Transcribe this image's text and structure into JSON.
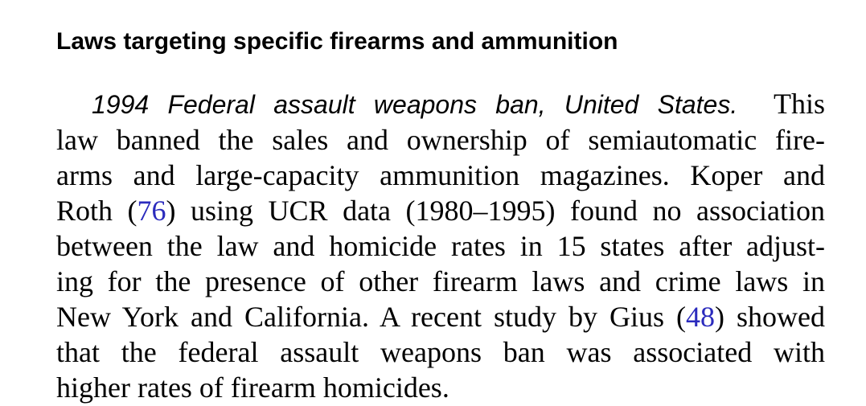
{
  "section": {
    "heading": "Laws targeting specific firearms and ammunition"
  },
  "paragraph": {
    "lead_title": "1994 Federal assault weapons ban, United States.",
    "line1_rest": "This",
    "line2": "law banned the sales and ownership of semiautomatic fire-",
    "line3": "arms and large-capacity ammunition magazines. Koper and",
    "line4_a": "Roth (",
    "line4_cite": "76",
    "line4_b": ") using UCR data (1980–1995) found no association",
    "line5": "between the law and homicide rates in 15 states after adjust-",
    "line6": "ing for the presence of other firearm laws and crime laws in",
    "line7_a": "New York and California. A recent study by Gius (",
    "line7_cite": "48",
    "line7_b": ") showed",
    "line8": "that the federal assault weapons ban was associated with",
    "line9": "higher rates of firearm homicides."
  },
  "colors": {
    "text": "#000000",
    "citation_link": "#2b2bbd",
    "background": "#ffffff"
  }
}
